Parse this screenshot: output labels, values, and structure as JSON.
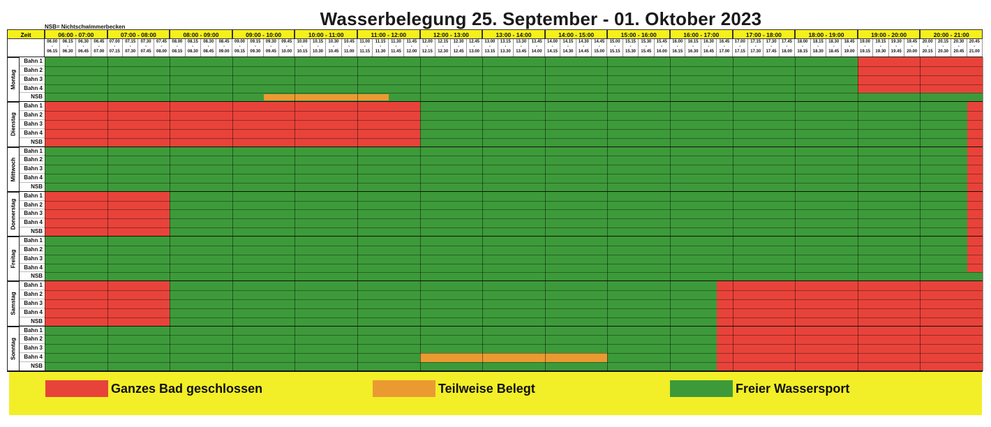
{
  "title": "Wasserbelegung 25. September - 01. Oktober 2023",
  "note": "NSB= Nichtschwimmerbecken",
  "zeit_label": "Zeit",
  "hours": [
    "06:00 - 07:00",
    "07:00 - 08:00",
    "08:00 - 09:00",
    "09:00 - 10:00",
    "10:00 - 11:00",
    "11:00 - 12:00",
    "12:00 - 13:00",
    "13:00 - 14:00",
    "14:00 - 15:00",
    "15:00 - 16:00",
    "16:00 - 17:00",
    "17:00 - 18:00",
    "18:00 - 19:00",
    "19:00 - 20:00",
    "20:00 - 21:00"
  ],
  "slots": [
    [
      "06.00",
      "06.15"
    ],
    [
      "06.15",
      "06.30"
    ],
    [
      "06.30",
      "06.45"
    ],
    [
      "06.45",
      "07.00"
    ],
    [
      "07.00",
      "07.15"
    ],
    [
      "07.15",
      "07.30"
    ],
    [
      "07.30",
      "07.45"
    ],
    [
      "07.45",
      "08.00"
    ],
    [
      "08.00",
      "08.15"
    ],
    [
      "08.15",
      "08.30"
    ],
    [
      "08.30",
      "08.45"
    ],
    [
      "08.45",
      "09.00"
    ],
    [
      "09.00",
      "09.15"
    ],
    [
      "09.15",
      "09.30"
    ],
    [
      "09.30",
      "09.45"
    ],
    [
      "09.45",
      "10.00"
    ],
    [
      "10.00",
      "10.15"
    ],
    [
      "10.15",
      "10.30"
    ],
    [
      "10.30",
      "10.45"
    ],
    [
      "10.45",
      "11.00"
    ],
    [
      "11.00",
      "11.15"
    ],
    [
      "11.15",
      "11.30"
    ],
    [
      "11.30",
      "11.45"
    ],
    [
      "11.45",
      "12.00"
    ],
    [
      "12.00",
      "12.15"
    ],
    [
      "12.15",
      "12.30"
    ],
    [
      "12.30",
      "12.45"
    ],
    [
      "12.45",
      "13.00"
    ],
    [
      "13.00",
      "13.15"
    ],
    [
      "13.15",
      "13.30"
    ],
    [
      "13.30",
      "13.45"
    ],
    [
      "13.45",
      "14.00"
    ],
    [
      "14.00",
      "14.15"
    ],
    [
      "14.15",
      "14.30"
    ],
    [
      "14.30",
      "14.45"
    ],
    [
      "14.45",
      "15.00"
    ],
    [
      "15.00",
      "15.15"
    ],
    [
      "15.15",
      "15.30"
    ],
    [
      "15.30",
      "15.45"
    ],
    [
      "15.45",
      "16.00"
    ],
    [
      "16.00",
      "16.15"
    ],
    [
      "16.15",
      "16.30"
    ],
    [
      "16.30",
      "16.45"
    ],
    [
      "16.45",
      "17.00"
    ],
    [
      "17.00",
      "17.15"
    ],
    [
      "17.15",
      "17.30"
    ],
    [
      "17.30",
      "17.45"
    ],
    [
      "17.45",
      "18.00"
    ],
    [
      "18.00",
      "18.15"
    ],
    [
      "18.15",
      "18.30"
    ],
    [
      "18.30",
      "18.45"
    ],
    [
      "18.45",
      "19.00"
    ],
    [
      "19.00",
      "19.15"
    ],
    [
      "19.15",
      "19.30"
    ],
    [
      "19.30",
      "19.45"
    ],
    [
      "19.45",
      "20.00"
    ],
    [
      "20.00",
      "20.15"
    ],
    [
      "20.15",
      "20.30"
    ],
    [
      "20.30",
      "20.45"
    ],
    [
      "20.45",
      "21.00"
    ]
  ],
  "lanes": [
    "Bahn 1",
    "Bahn 2",
    "Bahn 3",
    "Bahn 4",
    "NSB"
  ],
  "days": [
    {
      "name": "Montag",
      "blocks": [
        {
          "lanes": [
            0,
            3
          ],
          "slots": [
            52,
            59
          ],
          "status": "closed"
        },
        {
          "lanes": [
            4,
            4
          ],
          "slots": [
            14,
            21
          ],
          "status": "partial"
        }
      ]
    },
    {
      "name": "Dienstag",
      "blocks": [
        {
          "lanes": [
            0,
            4
          ],
          "slots": [
            0,
            23
          ],
          "status": "closed"
        },
        {
          "lanes": [
            0,
            4
          ],
          "slots": [
            59,
            59
          ],
          "status": "closed"
        }
      ]
    },
    {
      "name": "Mittwoch",
      "blocks": [
        {
          "lanes": [
            0,
            4
          ],
          "slots": [
            59,
            59
          ],
          "status": "closed"
        }
      ]
    },
    {
      "name": "Donnerstag",
      "blocks": [
        {
          "lanes": [
            0,
            4
          ],
          "slots": [
            0,
            7
          ],
          "status": "closed"
        },
        {
          "lanes": [
            0,
            4
          ],
          "slots": [
            59,
            59
          ],
          "status": "closed"
        }
      ]
    },
    {
      "name": "Freitag",
      "blocks": [
        {
          "lanes": [
            0,
            3
          ],
          "slots": [
            59,
            59
          ],
          "status": "closed"
        }
      ]
    },
    {
      "name": "Samstag",
      "blocks": [
        {
          "lanes": [
            0,
            4
          ],
          "slots": [
            0,
            7
          ],
          "status": "closed"
        },
        {
          "lanes": [
            0,
            4
          ],
          "slots": [
            43,
            59
          ],
          "status": "closed"
        }
      ]
    },
    {
      "name": "Sonntag",
      "blocks": [
        {
          "lanes": [
            0,
            4
          ],
          "slots": [
            43,
            59
          ],
          "status": "closed"
        },
        {
          "lanes": [
            3,
            3
          ],
          "slots": [
            24,
            35
          ],
          "status": "partial"
        }
      ]
    }
  ],
  "legend": {
    "closed": {
      "label": "Ganzes Bad geschlossen",
      "color": "#e8433a"
    },
    "partial": {
      "label": "Teilweise Belegt",
      "color": "#eb9a32"
    },
    "free": {
      "label": "Freier Wassersport",
      "color": "#3d9a3a"
    }
  }
}
